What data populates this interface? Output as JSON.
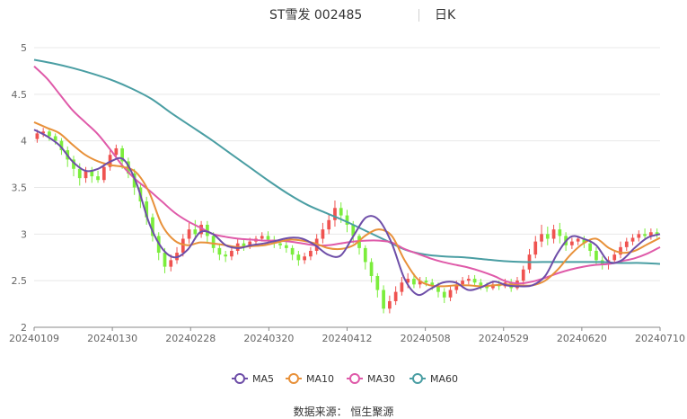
{
  "header": {
    "title": "ST雪发 002485",
    "period": "日K"
  },
  "footer": {
    "source": "数据来源：  恒生聚源"
  },
  "chart_data": {
    "type": "candlestick",
    "title": "ST雪发 002485",
    "period_label": "日K",
    "xlabel": "",
    "ylabel": "",
    "ylim": [
      2,
      5
    ],
    "y_ticks": [
      "2",
      "2.5",
      "3",
      "3.5",
      "4",
      "4.5",
      "5"
    ],
    "x_tick_labels": [
      "20240109",
      "20240130",
      "20240228",
      "20240320",
      "20240412",
      "20240508",
      "20240529",
      "20240620",
      "20240710"
    ],
    "grid": true,
    "legend_position": "bottom",
    "colors": {
      "up": "#ef5350",
      "down": "#7bed3c",
      "MA5": "#6e4ea8",
      "MA10": "#e8913a",
      "MA30": "#df5aa9",
      "MA60": "#4a9ea3"
    },
    "series": [
      {
        "name": "MA5",
        "values": [
          4.12,
          4.05,
          3.95,
          3.78,
          3.68,
          3.7,
          3.78,
          3.8,
          3.55,
          3.12,
          2.85,
          2.75,
          2.83,
          3.02,
          3.0,
          2.88,
          2.85,
          2.88,
          2.9,
          2.93,
          2.96,
          2.95,
          2.88,
          2.78,
          2.77,
          2.98,
          3.18,
          3.15,
          2.9,
          2.52,
          2.35,
          2.41,
          2.48,
          2.48,
          2.4,
          2.43,
          2.49,
          2.45,
          2.44,
          2.45,
          2.55,
          2.8,
          2.97,
          2.95,
          2.88,
          2.7,
          2.72,
          2.85,
          2.96,
          3.0
        ]
      },
      {
        "name": "MA10",
        "values": [
          4.2,
          4.14,
          4.08,
          3.96,
          3.85,
          3.78,
          3.74,
          3.72,
          3.66,
          3.45,
          3.1,
          2.93,
          2.88,
          2.91,
          2.9,
          2.88,
          2.86,
          2.87,
          2.88,
          2.91,
          2.94,
          2.93,
          2.9,
          2.85,
          2.84,
          2.88,
          2.99,
          3.05,
          2.98,
          2.72,
          2.52,
          2.45,
          2.44,
          2.45,
          2.45,
          2.44,
          2.45,
          2.46,
          2.45,
          2.45,
          2.5,
          2.62,
          2.78,
          2.9,
          2.95,
          2.85,
          2.8,
          2.82,
          2.89,
          2.96
        ]
      },
      {
        "name": "MA30",
        "values": [
          4.8,
          4.67,
          4.5,
          4.33,
          4.2,
          4.07,
          3.9,
          3.72,
          3.58,
          3.47,
          3.35,
          3.23,
          3.14,
          3.07,
          3.0,
          2.97,
          2.95,
          2.94,
          2.93,
          2.93,
          2.92,
          2.9,
          2.88,
          2.88,
          2.9,
          2.92,
          2.93,
          2.93,
          2.91,
          2.84,
          2.79,
          2.74,
          2.7,
          2.67,
          2.64,
          2.6,
          2.55,
          2.49,
          2.47,
          2.49,
          2.53,
          2.58,
          2.62,
          2.65,
          2.67,
          2.68,
          2.71,
          2.74,
          2.79,
          2.86
        ]
      },
      {
        "name": "MA60",
        "values": [
          4.87,
          4.83,
          4.78,
          4.72,
          4.65,
          4.56,
          4.45,
          4.3,
          4.16,
          4.02,
          3.87,
          3.72,
          3.57,
          3.43,
          3.31,
          3.22,
          3.13,
          3.03,
          2.93,
          2.83,
          2.78,
          2.76,
          2.75,
          2.73,
          2.71,
          2.7,
          2.7,
          2.7,
          2.7,
          2.7,
          2.69,
          2.69,
          2.68
        ]
      }
    ],
    "candles": [
      [
        4.02,
        4.08,
        3.98,
        4.12
      ],
      [
        4.08,
        4.1,
        4.04,
        4.14
      ],
      [
        4.1,
        4.05,
        4.0,
        4.12
      ],
      [
        4.05,
        4.0,
        3.96,
        4.08
      ],
      [
        4.0,
        3.9,
        3.85,
        4.03
      ],
      [
        3.9,
        3.8,
        3.72,
        3.94
      ],
      [
        3.8,
        3.7,
        3.62,
        3.84
      ],
      [
        3.7,
        3.6,
        3.52,
        3.76
      ],
      [
        3.6,
        3.68,
        3.55,
        3.72
      ],
      [
        3.68,
        3.62,
        3.55,
        3.72
      ],
      [
        3.62,
        3.58,
        3.55,
        3.68
      ],
      [
        3.58,
        3.72,
        3.55,
        3.76
      ],
      [
        3.72,
        3.85,
        3.68,
        3.9
      ],
      [
        3.85,
        3.92,
        3.8,
        3.96
      ],
      [
        3.92,
        3.78,
        3.7,
        3.95
      ],
      [
        3.78,
        3.65,
        3.6,
        3.82
      ],
      [
        3.65,
        3.5,
        3.42,
        3.7
      ],
      [
        3.5,
        3.35,
        3.28,
        3.55
      ],
      [
        3.35,
        3.18,
        3.1,
        3.4
      ],
      [
        3.18,
        2.98,
        2.92,
        3.22
      ],
      [
        2.98,
        2.8,
        2.72,
        3.02
      ],
      [
        2.8,
        2.65,
        2.58,
        2.85
      ],
      [
        2.65,
        2.72,
        2.6,
        2.78
      ],
      [
        2.72,
        2.8,
        2.68,
        2.86
      ],
      [
        2.8,
        2.95,
        2.76,
        3.0
      ],
      [
        2.95,
        3.05,
        2.9,
        3.12
      ],
      [
        3.05,
        3.0,
        2.94,
        3.15
      ],
      [
        3.0,
        3.1,
        2.96,
        3.14
      ],
      [
        3.1,
        2.98,
        2.9,
        3.14
      ],
      [
        2.98,
        2.85,
        2.8,
        3.02
      ],
      [
        2.85,
        2.78,
        2.72,
        2.9
      ],
      [
        2.78,
        2.76,
        2.7,
        2.82
      ],
      [
        2.76,
        2.82,
        2.72,
        2.86
      ],
      [
        2.82,
        2.9,
        2.78,
        2.95
      ],
      [
        2.9,
        2.86,
        2.82,
        2.94
      ],
      [
        2.86,
        2.92,
        2.84,
        2.96
      ],
      [
        2.92,
        2.95,
        2.88,
        2.98
      ],
      [
        2.95,
        2.98,
        2.92,
        3.02
      ],
      [
        2.98,
        2.94,
        2.9,
        3.03
      ],
      [
        2.94,
        2.9,
        2.85,
        2.98
      ],
      [
        2.9,
        2.88,
        2.84,
        2.94
      ],
      [
        2.88,
        2.85,
        2.8,
        2.92
      ],
      [
        2.85,
        2.78,
        2.72,
        2.88
      ],
      [
        2.78,
        2.72,
        2.66,
        2.82
      ],
      [
        2.72,
        2.76,
        2.68,
        2.8
      ],
      [
        2.76,
        2.82,
        2.72,
        2.86
      ],
      [
        2.82,
        2.95,
        2.78,
        3.0
      ],
      [
        2.95,
        3.05,
        2.9,
        3.12
      ],
      [
        3.05,
        3.15,
        3.0,
        3.22
      ],
      [
        3.15,
        3.28,
        3.08,
        3.36
      ],
      [
        3.28,
        3.2,
        3.12,
        3.34
      ],
      [
        3.2,
        3.1,
        3.02,
        3.26
      ],
      [
        3.1,
        2.98,
        2.9,
        3.14
      ],
      [
        2.98,
        2.85,
        2.78,
        3.0
      ],
      [
        2.85,
        2.7,
        2.62,
        2.88
      ],
      [
        2.7,
        2.55,
        2.48,
        2.74
      ],
      [
        2.55,
        2.4,
        2.32,
        2.58
      ],
      [
        2.4,
        2.2,
        2.15,
        2.45
      ],
      [
        2.2,
        2.28,
        2.15,
        2.34
      ],
      [
        2.28,
        2.38,
        2.24,
        2.44
      ],
      [
        2.38,
        2.48,
        2.34,
        2.54
      ],
      [
        2.48,
        2.52,
        2.42,
        2.58
      ],
      [
        2.52,
        2.46,
        2.42,
        2.58
      ],
      [
        2.46,
        2.5,
        2.42,
        2.54
      ],
      [
        2.5,
        2.48,
        2.44,
        2.54
      ],
      [
        2.48,
        2.44,
        2.4,
        2.52
      ],
      [
        2.44,
        2.38,
        2.32,
        2.48
      ],
      [
        2.38,
        2.32,
        2.26,
        2.42
      ],
      [
        2.32,
        2.4,
        2.28,
        2.44
      ],
      [
        2.4,
        2.46,
        2.36,
        2.5
      ],
      [
        2.46,
        2.5,
        2.42,
        2.54
      ],
      [
        2.5,
        2.52,
        2.46,
        2.56
      ],
      [
        2.52,
        2.48,
        2.44,
        2.56
      ],
      [
        2.48,
        2.45,
        2.4,
        2.52
      ],
      [
        2.45,
        2.42,
        2.38,
        2.48
      ],
      [
        2.42,
        2.46,
        2.4,
        2.5
      ],
      [
        2.46,
        2.44,
        2.4,
        2.5
      ],
      [
        2.44,
        2.48,
        2.42,
        2.52
      ],
      [
        2.48,
        2.42,
        2.38,
        2.52
      ],
      [
        2.42,
        2.5,
        2.4,
        2.54
      ],
      [
        2.5,
        2.62,
        2.46,
        2.66
      ],
      [
        2.62,
        2.78,
        2.58,
        2.84
      ],
      [
        2.78,
        2.92,
        2.74,
        2.98
      ],
      [
        2.92,
        3.0,
        2.86,
        3.1
      ],
      [
        3.0,
        2.95,
        2.88,
        3.08
      ],
      [
        2.95,
        3.05,
        2.9,
        3.1
      ],
      [
        3.05,
        2.98,
        2.9,
        3.12
      ],
      [
        2.98,
        2.88,
        2.82,
        3.02
      ],
      [
        2.88,
        2.92,
        2.84,
        2.96
      ],
      [
        2.92,
        2.95,
        2.88,
        2.98
      ],
      [
        2.95,
        2.9,
        2.85,
        2.98
      ],
      [
        2.9,
        2.82,
        2.76,
        2.94
      ],
      [
        2.82,
        2.72,
        2.66,
        2.86
      ],
      [
        2.72,
        2.68,
        2.62,
        2.76
      ],
      [
        2.68,
        2.72,
        2.62,
        2.76
      ],
      [
        2.72,
        2.78,
        2.68,
        2.82
      ],
      [
        2.78,
        2.86,
        2.74,
        2.92
      ],
      [
        2.86,
        2.92,
        2.82,
        2.96
      ],
      [
        2.92,
        2.96,
        2.88,
        3.0
      ],
      [
        2.96,
        3.0,
        2.92,
        3.04
      ],
      [
        3.0,
        2.98,
        2.94,
        3.06
      ],
      [
        2.98,
        3.02,
        2.94,
        3.06
      ],
      [
        3.02,
        3.0,
        2.96,
        3.06
      ]
    ]
  }
}
